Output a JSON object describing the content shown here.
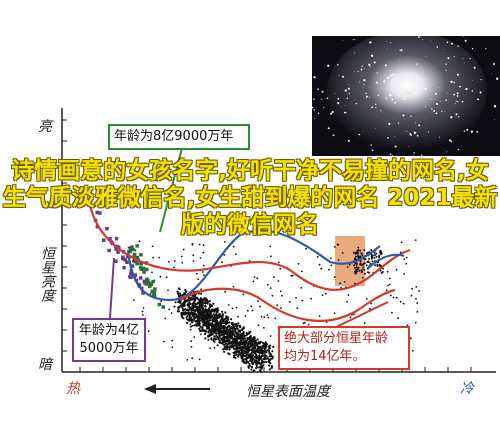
{
  "overlay": {
    "title": "诗情画意的女孩名字,好听干净不易撞的网名,女生气质淡雅微信名,女生甜到爆的网名 2021最新版的微信网名"
  },
  "chart_data": {
    "type": "scatter",
    "title": "",
    "xlabel": "恒星表面温度",
    "ylabel": "恒星亮度",
    "x_hot_label": "热",
    "x_cool_label": "冷",
    "y_bright_label": "亮",
    "y_dim_label": "暗",
    "grid": false,
    "annotations": [
      {
        "id": "age-8",
        "text": "年龄为8亿9000万年",
        "color": "#2e8b3c"
      },
      {
        "id": "age-4",
        "text_line1": "年龄为4亿",
        "text_line2": "5000万年",
        "color": "#7a3a8e"
      },
      {
        "id": "age-14",
        "text_line1": "绝大部分恒星年龄",
        "text_line2": "均为14亿年。",
        "color": "#d33a2a"
      }
    ],
    "series": [
      {
        "marker_color": "#6a3a8a"
      },
      {
        "marker_color": "#2e6a3a"
      },
      {
        "marker_color": "#111111"
      }
    ]
  },
  "colors": {
    "green": "#2e8b3c",
    "purple": "#7a3a8e",
    "red": "#d33a2a",
    "blue_curve": "#2c5aa8",
    "overlay_text": "#f4e200",
    "giant_box": "#e8a070"
  }
}
